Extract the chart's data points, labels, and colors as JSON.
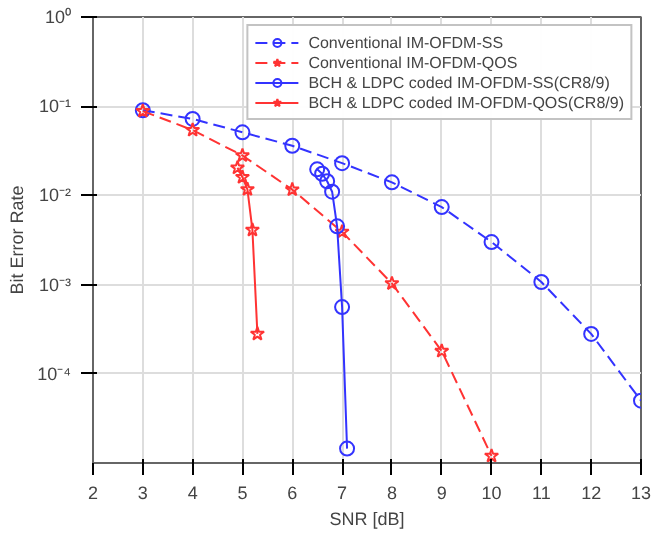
{
  "chart_data": {
    "type": "line",
    "xlabel": "SNR [dB]",
    "ylabel": "Bit Error Rate",
    "log": "y",
    "grid": true,
    "legend": "top right",
    "xlim": [
      2,
      13
    ],
    "xticks": [
      2,
      3,
      4,
      5,
      6,
      7,
      8,
      9,
      10,
      11,
      12,
      13
    ],
    "ylim": [
      1e-05,
      1
    ],
    "yticks": [
      {
        "value": 0.0001,
        "label": "10⁻⁴"
      },
      {
        "value": 0.001,
        "label": "10⁻³"
      },
      {
        "value": 0.01,
        "label": "10⁻²"
      },
      {
        "value": 0.1,
        "label": "10⁻¹"
      },
      {
        "value": 1,
        "label": "10⁰"
      }
    ],
    "series": [
      {
        "name": "Conventional IM-OFDM-SS",
        "color": "#3333ff",
        "line_style": "dashed",
        "marker": "circle",
        "x": [
          3,
          4,
          5,
          6,
          7,
          8,
          9,
          10,
          11,
          12,
          13
        ],
        "values": [
          0.09,
          0.072,
          0.051,
          0.036,
          0.023,
          0.014,
          0.0074,
          0.003,
          0.00107,
          0.00028,
          5e-05
        ]
      },
      {
        "name": "Conventional IM-OFDM-QOS",
        "color": "#ff3333",
        "line_style": "dashed",
        "marker": "star",
        "x": [
          3,
          4,
          5,
          6,
          7,
          8,
          9,
          10
        ],
        "values": [
          0.088,
          0.054,
          0.028,
          0.0116,
          0.0039,
          0.00103,
          0.00018,
          1.2e-05
        ]
      },
      {
        "name": "BCH & LDPC coded IM-OFDM-SS(CR8/9)",
        "color": "#3333ff",
        "line_style": "solid",
        "marker": "circle",
        "x": [
          6.5,
          6.6,
          6.7,
          6.8,
          6.9,
          7.0,
          7.1
        ],
        "values": [
          0.0196,
          0.0175,
          0.0144,
          0.011,
          0.0045,
          0.00056,
          1.45e-05
        ]
      },
      {
        "name": "BCH & LDPC coded IM-OFDM-QOS(CR8/9)",
        "color": "#ff3333",
        "line_style": "solid",
        "marker": "star",
        "x": [
          4.9,
          5.0,
          5.1,
          5.2,
          5.3
        ],
        "values": [
          0.0204,
          0.016,
          0.0117,
          0.0041,
          0.00028
        ]
      }
    ]
  }
}
